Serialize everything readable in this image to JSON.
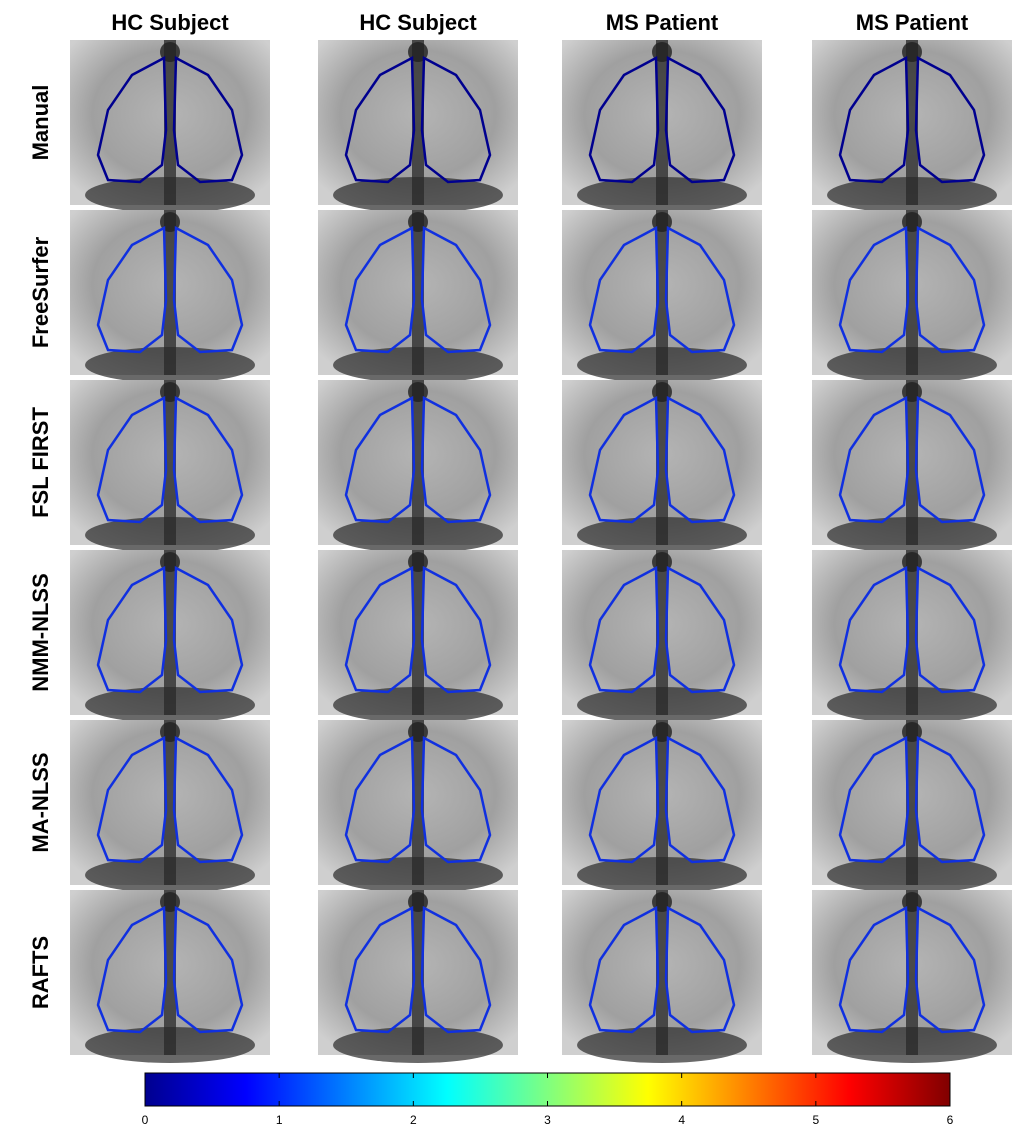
{
  "columns": [
    "HC Subject",
    "HC Subject",
    "MS Patient",
    "MS Patient"
  ],
  "rows": [
    "Manual",
    "FreeSurfer",
    "FSL FIRST",
    "NMM-NLSS",
    "MA-NLSS",
    "RAFTS"
  ],
  "colorbar": {
    "lim": [
      0,
      6
    ],
    "ticks": [
      0,
      1,
      2,
      3,
      4,
      5,
      6
    ]
  }
}
